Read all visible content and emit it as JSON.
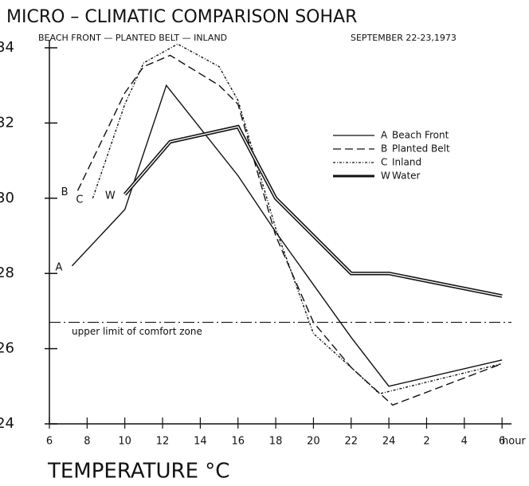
{
  "chart_data": {
    "type": "line",
    "title": "MICRO – CLIMATIC COMPARISON SOHAR",
    "subtitle": "BEACH FRONT — PLANTED BELT — INLAND",
    "date": "SEPTEMBER 22-23,1973",
    "xlabel": "TEMPERATURE °C",
    "xunit": "hour",
    "xlim": [
      6,
      30.5
    ],
    "ylim": [
      24,
      34
    ],
    "xticks": [
      6,
      8,
      10,
      12,
      14,
      16,
      18,
      20,
      22,
      24,
      {
        "value": 26,
        "label": "2"
      },
      {
        "value": 28,
        "label": "4"
      },
      {
        "value": 30,
        "label": "6"
      }
    ],
    "yticks": [
      24,
      26,
      28,
      30,
      32,
      34
    ],
    "series": [
      {
        "name": "Beach Front",
        "letter": "A",
        "style": "solid",
        "color": "#111",
        "x": [
          7.2,
          10,
          12.2,
          16,
          18,
          22,
          24,
          30
        ],
        "values": [
          28.2,
          29.7,
          33.0,
          30.6,
          29.1,
          26.3,
          25.0,
          25.7
        ]
      },
      {
        "name": "Planted Belt",
        "letter": "B",
        "style": "dashed",
        "color": "#111",
        "x": [
          7.5,
          10,
          11,
          12.4,
          15,
          16,
          18,
          20,
          22,
          24.2,
          30
        ],
        "values": [
          30.2,
          32.8,
          33.5,
          33.8,
          33.0,
          32.5,
          29.0,
          26.7,
          25.5,
          24.5,
          25.6
        ]
      },
      {
        "name": "Inland",
        "letter": "C",
        "style": "dashdot",
        "color": "#111",
        "x": [
          8.3,
          10,
          11,
          12.8,
          15,
          16,
          18,
          20,
          22,
          23.5,
          30
        ],
        "values": [
          30.0,
          32.5,
          33.6,
          34.1,
          33.5,
          32.6,
          29.2,
          26.4,
          25.5,
          24.8,
          25.6
        ]
      },
      {
        "name": "Water",
        "letter": "W",
        "style": "double",
        "color": "#111",
        "x": [
          10,
          12.4,
          16,
          18,
          22,
          24,
          30
        ],
        "values": [
          30.1,
          31.5,
          31.9,
          30.0,
          28.0,
          28.0,
          27.4
        ]
      }
    ],
    "comfort": {
      "label": "upper limit of comfort zone",
      "value": 26.7
    }
  }
}
